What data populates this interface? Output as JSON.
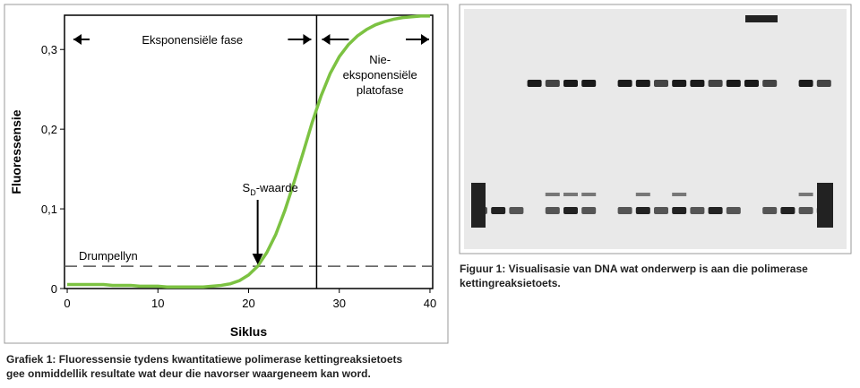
{
  "chart_data": {
    "type": "line",
    "x_label": "Siklus",
    "y_label": "Fluoressensie",
    "x": [
      0,
      1,
      2,
      3,
      4,
      5,
      6,
      7,
      8,
      9,
      10,
      11,
      12,
      13,
      14,
      15,
      16,
      17,
      18,
      19,
      20,
      21,
      22,
      23,
      24,
      25,
      26,
      27,
      28,
      29,
      30,
      31,
      32,
      33,
      34,
      35,
      36,
      37,
      38,
      39,
      40
    ],
    "series": [
      {
        "name": "Fluoressensie",
        "color": "#7cc242",
        "values": [
          0.005,
          0.005,
          0.005,
          0.005,
          0.005,
          0.004,
          0.004,
          0.004,
          0.003,
          0.003,
          0.003,
          0.002,
          0.002,
          0.002,
          0.002,
          0.002,
          0.003,
          0.004,
          0.006,
          0.01,
          0.017,
          0.028,
          0.045,
          0.068,
          0.098,
          0.133,
          0.17,
          0.208,
          0.242,
          0.27,
          0.291,
          0.306,
          0.317,
          0.325,
          0.331,
          0.335,
          0.338,
          0.34,
          0.341,
          0.342,
          0.342
        ]
      }
    ],
    "xlim": [
      -0.3,
      40.3
    ],
    "xticks": [
      0,
      10,
      20,
      30,
      40
    ],
    "ylim": [
      0,
      0.343
    ],
    "yticks": [
      0,
      {
        "value": 0.1,
        "label": "0,1"
      },
      {
        "value": 0.2,
        "label": "0,2"
      },
      {
        "value": 0.3,
        "label": "0,3"
      }
    ],
    "threshold": {
      "value": 0.028,
      "label": "Drumpellyn"
    },
    "phase_boundary": 27.5,
    "phase_labels": {
      "exponential": "Eksponensiële fase",
      "plateau": [
        "Nie-",
        "eksponensiële",
        "platofase"
      ]
    },
    "sd_marker": {
      "x": 21,
      "main": "S",
      "sub": "D",
      "rest": "-waarde"
    }
  },
  "captions": {
    "chart": [
      "Grafiek 1: Fluoressensie tydens kwantitatiewe polimerase kettingreaksietoets",
      "gee onmiddellik resultate wat deur die navorser waargeneem kan word."
    ],
    "gel": [
      "Figuur 1: Visualisasie van DNA wat onderwerp is aan die polimerase",
      "kettingreaksietoets."
    ]
  }
}
